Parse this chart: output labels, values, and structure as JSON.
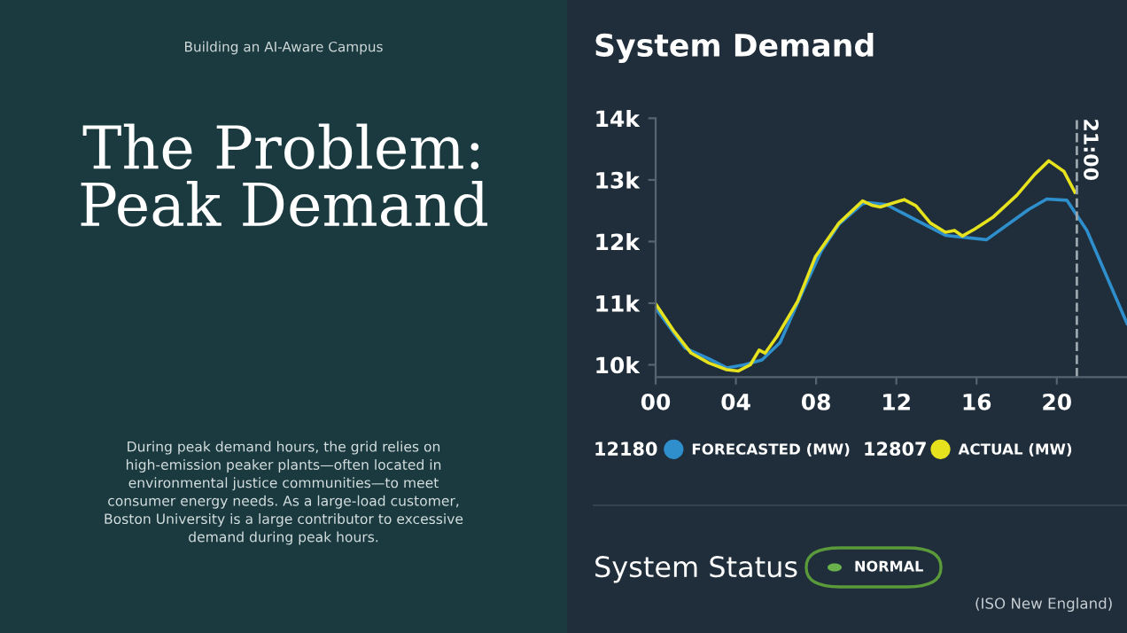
{
  "chart_data": {
    "type": "line",
    "title": "System Demand",
    "x": [
      0,
      1.47,
      2.65,
      3.54,
      4.42,
      5.3,
      6.2,
      7.37,
      8.26,
      9.14,
      10.3,
      10.6,
      11.5,
      14.45,
      16.5,
      18.6,
      19.5,
      20.5,
      21.5,
      23.5
    ],
    "series": [
      {
        "name": "FORECASTED (MW)",
        "color": "#2e8fcc",
        "values": [
          10920,
          10270,
          10100,
          9950,
          10000,
          10080,
          10360,
          11220,
          11850,
          12280,
          12610,
          12630,
          12600,
          12100,
          12030,
          12520,
          12690,
          12670,
          12180,
          10670
        ]
      },
      {
        "name": "ACTUAL (MW)",
        "color": "#e6e21e",
        "x": [
          0,
          0.88,
          1.77,
          2.65,
          3.54,
          4.13,
          4.72,
          5.16,
          5.46,
          6.05,
          7.08,
          7.96,
          9.14,
          10.32,
          10.77,
          11.2,
          12.39,
          12.98,
          13.7,
          14.45,
          14.9,
          15.3,
          15.9,
          16.8,
          18.0,
          18.9,
          19.6,
          20.35,
          20.9
        ],
        "values": [
          10990,
          10560,
          10190,
          10030,
          9920,
          9900,
          10000,
          10240,
          10190,
          10460,
          11030,
          11750,
          12300,
          12660,
          12590,
          12560,
          12680,
          12580,
          12300,
          12150,
          12180,
          12090,
          12200,
          12390,
          12750,
          13090,
          13310,
          13140,
          12800
        ]
      }
    ],
    "xlim": [
      0,
      23.5
    ],
    "xticks": [
      {
        "value": 0,
        "label": "00"
      },
      {
        "value": 4,
        "label": "04"
      },
      {
        "value": 8,
        "label": "08"
      },
      {
        "value": 12,
        "label": "12"
      },
      {
        "value": 16,
        "label": "16"
      },
      {
        "value": 20,
        "label": "20"
      }
    ],
    "ylim": [
      9800,
      14000
    ],
    "yticks": [
      {
        "value": 10000,
        "label": "10k"
      },
      {
        "value": 11000,
        "label": "11k"
      },
      {
        "value": 12000,
        "label": "12k"
      },
      {
        "value": 13000,
        "label": "13k"
      },
      {
        "value": 14000,
        "label": "14k"
      }
    ],
    "ref_lines": [
      {
        "axis": "x",
        "value": 21,
        "label": "21:00",
        "color": "#9aa4ab",
        "line_style": "dashed"
      }
    ],
    "grid": false,
    "legend": "bottom",
    "marker": "none",
    "line_style": "solid",
    "annotations": [
      "Building an AI-Aware Campus",
      "The Problem:\nPeak Demand",
      "During peak demand hours, the grid relies on\nhigh-emission peaker plants—often located in\nenvironmental justice communities—to meet\nconsumer energy needs. As a large-load customer,\nBoston University is a large contributor to excessive\ndemand during peak hours.",
      "12180",
      "12807",
      "System Status",
      "NORMAL",
      "(ISO New England)"
    ]
  }
}
